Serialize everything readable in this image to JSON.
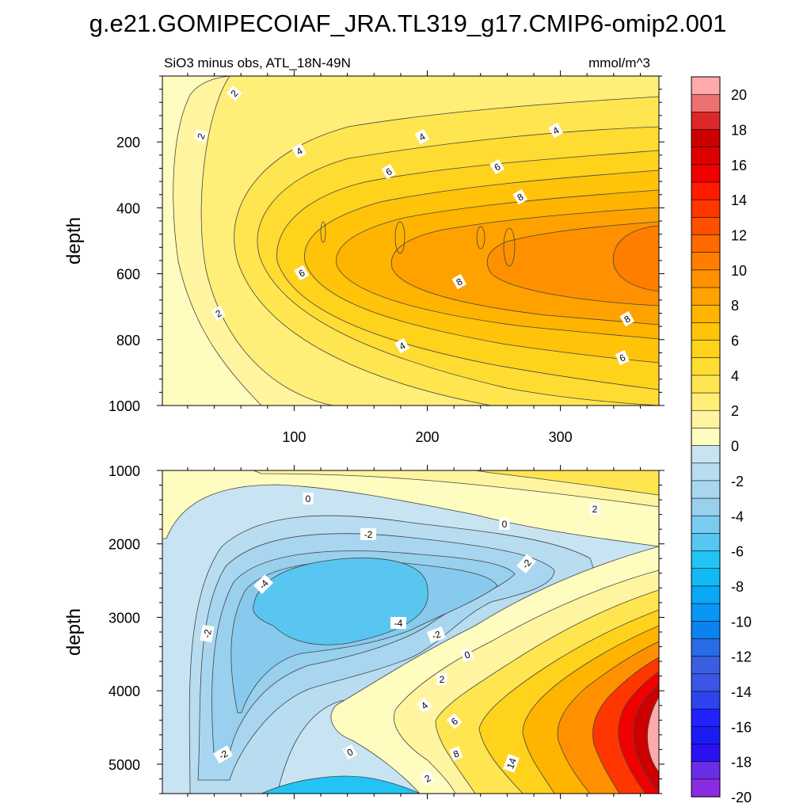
{
  "chart_data": {
    "type": "contour",
    "title": "g.e21.GOMIPECOIAF_JRA.TL319_g17.CMIP6-omip2.001",
    "subtitle": "SiO3 minus obs, ATL_18N-49N",
    "units": "mmol/m^3",
    "colorbar": {
      "levels": [
        -20,
        -19,
        -18,
        -17,
        -16,
        -15,
        -14,
        -13,
        -12,
        -11,
        -10,
        -9,
        -8,
        -7,
        -6,
        -5,
        -4,
        -3,
        -2,
        -1,
        0,
        1,
        2,
        3,
        4,
        5,
        6,
        7,
        8,
        9,
        10,
        11,
        12,
        13,
        14,
        15,
        16,
        17,
        18,
        19,
        20
      ],
      "tick_labels": [
        "-20",
        "-18",
        "-16",
        "-14",
        "-12",
        "-10",
        "-8",
        "-6",
        "-4",
        "-2",
        "0",
        "2",
        "4",
        "6",
        "8",
        "10",
        "12",
        "14",
        "16",
        "18",
        "20"
      ],
      "colors": [
        "#8a2be2",
        "#6a2ee6",
        "#2a12f0",
        "#1a1cf5",
        "#2222ff",
        "#2d44ee",
        "#3c55e6",
        "#3b5ee0",
        "#2a6ce6",
        "#0a82f0",
        "#0a96f5",
        "#0aa8f5",
        "#12baf5",
        "#22c4f5",
        "#58c6f0",
        "#78ccf0",
        "#98d0ee",
        "#a8d6f0",
        "#b8dcf0",
        "#c8e4f2",
        "#fffcc0",
        "#fff5a0",
        "#ffee78",
        "#ffe650",
        "#ffdc32",
        "#ffd21c",
        "#ffc30a",
        "#ffb400",
        "#ffa200",
        "#ff9100",
        "#ff7e00",
        "#ff6a00",
        "#ff5000",
        "#ff3600",
        "#ff1a00",
        "#f00000",
        "#de0000",
        "#cc0000",
        "#dc2828",
        "#ee7070",
        "#ffaaaa"
      ]
    },
    "panels": [
      {
        "name": "upper",
        "x_ticks": [
          100,
          200,
          300
        ],
        "y_ticks": [
          200,
          400,
          600,
          800,
          1000
        ],
        "y_range": [
          0,
          1000
        ],
        "ylabel": "depth",
        "contour_labels": [
          "2",
          "2",
          "2",
          "4",
          "4",
          "4",
          "4",
          "6",
          "6",
          "6",
          "6",
          "8",
          "8",
          "8"
        ]
      },
      {
        "name": "lower",
        "x_ticks": [
          100,
          200,
          300
        ],
        "y_ticks": [
          1000,
          2000,
          3000,
          4000,
          5000
        ],
        "y_range": [
          1000,
          5400
        ],
        "ylabel": "depth",
        "contour_labels": [
          "0",
          "2",
          "0",
          "-2",
          "-2",
          "-4",
          "-2",
          "-4",
          "-2",
          "0",
          "2",
          "4",
          "6",
          "8",
          "14",
          "0",
          "2",
          "-2"
        ]
      }
    ]
  }
}
